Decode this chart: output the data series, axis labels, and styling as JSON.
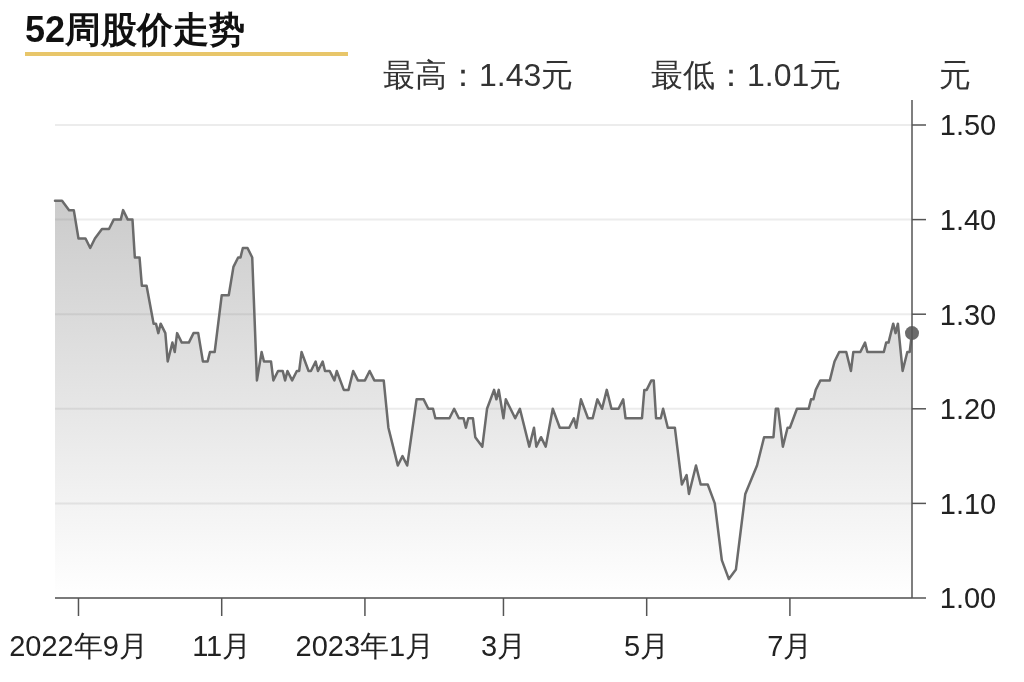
{
  "chart_data": {
    "type": "area",
    "title": "52周股价走势",
    "ylabel": "元",
    "annotations": [
      "最高：1.43元",
      "最低：1.01元"
    ],
    "xlim": [
      "2022-08-22",
      "2023-08-22"
    ],
    "xticks": [
      {
        "value": "2022-09-01",
        "label": "2022年9月"
      },
      {
        "value": "2022-11-01",
        "label": "11月"
      },
      {
        "value": "2023-01-01",
        "label": "2023年1月"
      },
      {
        "value": "2023-03-01",
        "label": "3月"
      },
      {
        "value": "2023-05-01",
        "label": "5月"
      },
      {
        "value": "2023-07-01",
        "label": "7月"
      }
    ],
    "ylim": [
      1.0,
      1.5
    ],
    "yticks": [
      {
        "value": 1.0,
        "label": "1.00"
      },
      {
        "value": 1.1,
        "label": "1.10"
      },
      {
        "value": 1.2,
        "label": "1.20"
      },
      {
        "value": 1.3,
        "label": "1.30"
      },
      {
        "value": 1.4,
        "label": "1.40"
      },
      {
        "value": 1.5,
        "label": "1.50"
      }
    ],
    "grid": "y",
    "series": [
      {
        "color": "#6b6b6b",
        "x": [
          "2022-08-22",
          "2022-08-25",
          "2022-08-28",
          "2022-08-30",
          "2022-09-01",
          "2022-09-04",
          "2022-09-06",
          "2022-09-08",
          "2022-09-11",
          "2022-09-14",
          "2022-09-16",
          "2022-09-19",
          "2022-09-20",
          "2022-09-22",
          "2022-09-24",
          "2022-09-25",
          "2022-09-27",
          "2022-09-28",
          "2022-09-30",
          "2022-10-03",
          "2022-10-04",
          "2022-10-05",
          "2022-10-06",
          "2022-10-08",
          "2022-10-09",
          "2022-10-11",
          "2022-10-12",
          "2022-10-13",
          "2022-10-15",
          "2022-10-18",
          "2022-10-20",
          "2022-10-22",
          "2022-10-24",
          "2022-10-26",
          "2022-10-27",
          "2022-10-29",
          "2022-11-01",
          "2022-11-04",
          "2022-11-06",
          "2022-11-08",
          "2022-11-09",
          "2022-11-10",
          "2022-11-12",
          "2022-11-14",
          "2022-11-16",
          "2022-11-18",
          "2022-11-19",
          "2022-11-22",
          "2022-11-23",
          "2022-11-25",
          "2022-11-27",
          "2022-11-28",
          "2022-11-29",
          "2022-12-01",
          "2022-12-03",
          "2022-12-04",
          "2022-12-05",
          "2022-12-08",
          "2022-12-09",
          "2022-12-11",
          "2022-12-12",
          "2022-12-14",
          "2022-12-15",
          "2022-12-17",
          "2022-12-19",
          "2022-12-20",
          "2022-12-23",
          "2022-12-25",
          "2022-12-27",
          "2022-12-29",
          "2023-01-01",
          "2023-01-03",
          "2023-01-05",
          "2023-01-09",
          "2023-01-11",
          "2023-01-13",
          "2023-01-15",
          "2023-01-17",
          "2023-01-19",
          "2023-01-23",
          "2023-01-26",
          "2023-01-28",
          "2023-01-30",
          "2023-01-31",
          "2023-02-06",
          "2023-02-08",
          "2023-02-10",
          "2023-02-12",
          "2023-02-13",
          "2023-02-14",
          "2023-02-16",
          "2023-02-17",
          "2023-02-20",
          "2023-02-22",
          "2023-02-25",
          "2023-02-26",
          "2023-02-27",
          "2023-03-01",
          "2023-03-02",
          "2023-03-04",
          "2023-03-06",
          "2023-03-08",
          "2023-03-12",
          "2023-03-14",
          "2023-03-15",
          "2023-03-17",
          "2023-03-19",
          "2023-03-22",
          "2023-03-25",
          "2023-03-29",
          "2023-03-31",
          "2023-04-01",
          "2023-04-03",
          "2023-04-06",
          "2023-04-08",
          "2023-04-10",
          "2023-04-12",
          "2023-04-14",
          "2023-04-16",
          "2023-04-19",
          "2023-04-21",
          "2023-04-22",
          "2023-04-29",
          "2023-04-30",
          "2023-05-01",
          "2023-05-03",
          "2023-05-04",
          "2023-05-05",
          "2023-05-07",
          "2023-05-08",
          "2023-05-10",
          "2023-05-13",
          "2023-05-16",
          "2023-05-18",
          "2023-05-19",
          "2023-05-22",
          "2023-05-24",
          "2023-05-27",
          "2023-05-30",
          "2023-06-02",
          "2023-06-05",
          "2023-06-08",
          "2023-06-12",
          "2023-06-17",
          "2023-06-20",
          "2023-06-24",
          "2023-06-25",
          "2023-06-26",
          "2023-06-28",
          "2023-06-30",
          "2023-07-01",
          "2023-07-04",
          "2023-07-09",
          "2023-07-10",
          "2023-07-11",
          "2023-07-12",
          "2023-07-14",
          "2023-07-16",
          "2023-07-18",
          "2023-07-20",
          "2023-07-22",
          "2023-07-25",
          "2023-07-27",
          "2023-07-28",
          "2023-07-31",
          "2023-08-02",
          "2023-08-03",
          "2023-08-10",
          "2023-08-11",
          "2023-08-12",
          "2023-08-14",
          "2023-08-15",
          "2023-08-16",
          "2023-08-18",
          "2023-08-20",
          "2023-08-21",
          "2023-08-22"
        ],
        "values": [
          1.42,
          1.42,
          1.41,
          1.41,
          1.38,
          1.38,
          1.37,
          1.38,
          1.39,
          1.39,
          1.4,
          1.4,
          1.41,
          1.4,
          1.4,
          1.36,
          1.36,
          1.33,
          1.33,
          1.29,
          1.29,
          1.28,
          1.29,
          1.28,
          1.25,
          1.27,
          1.26,
          1.28,
          1.27,
          1.27,
          1.28,
          1.28,
          1.25,
          1.25,
          1.26,
          1.26,
          1.32,
          1.32,
          1.35,
          1.36,
          1.36,
          1.37,
          1.37,
          1.36,
          1.23,
          1.26,
          1.25,
          1.25,
          1.23,
          1.24,
          1.24,
          1.23,
          1.24,
          1.23,
          1.24,
          1.24,
          1.26,
          1.24,
          1.24,
          1.25,
          1.24,
          1.25,
          1.24,
          1.24,
          1.23,
          1.24,
          1.22,
          1.22,
          1.24,
          1.23,
          1.23,
          1.24,
          1.23,
          1.23,
          1.18,
          1.16,
          1.14,
          1.15,
          1.14,
          1.21,
          1.21,
          1.2,
          1.2,
          1.19,
          1.19,
          1.2,
          1.19,
          1.19,
          1.18,
          1.19,
          1.19,
          1.17,
          1.16,
          1.2,
          1.22,
          1.21,
          1.22,
          1.19,
          1.21,
          1.2,
          1.19,
          1.2,
          1.16,
          1.18,
          1.16,
          1.17,
          1.16,
          1.2,
          1.18,
          1.18,
          1.19,
          1.18,
          1.21,
          1.19,
          1.19,
          1.21,
          1.2,
          1.22,
          1.2,
          1.2,
          1.21,
          1.19,
          1.19,
          1.22,
          1.22,
          1.23,
          1.23,
          1.19,
          1.19,
          1.2,
          1.18,
          1.18,
          1.12,
          1.13,
          1.11,
          1.14,
          1.12,
          1.12,
          1.1,
          1.04,
          1.02,
          1.03,
          1.11,
          1.14,
          1.17,
          1.17,
          1.2,
          1.2,
          1.16,
          1.18,
          1.18,
          1.2,
          1.2,
          1.21,
          1.21,
          1.22,
          1.23,
          1.23,
          1.23,
          1.25,
          1.26,
          1.26,
          1.24,
          1.26,
          1.26,
          1.27,
          1.26,
          1.26,
          1.27,
          1.27,
          1.29,
          1.28,
          1.29,
          1.24,
          1.26,
          1.26,
          1.28
        ]
      },
      {
        "type": "scatter",
        "color": "#6b6b6b",
        "marker": "circle",
        "x": [
          "2023-08-22"
        ],
        "values": [
          1.28
        ]
      }
    ]
  }
}
